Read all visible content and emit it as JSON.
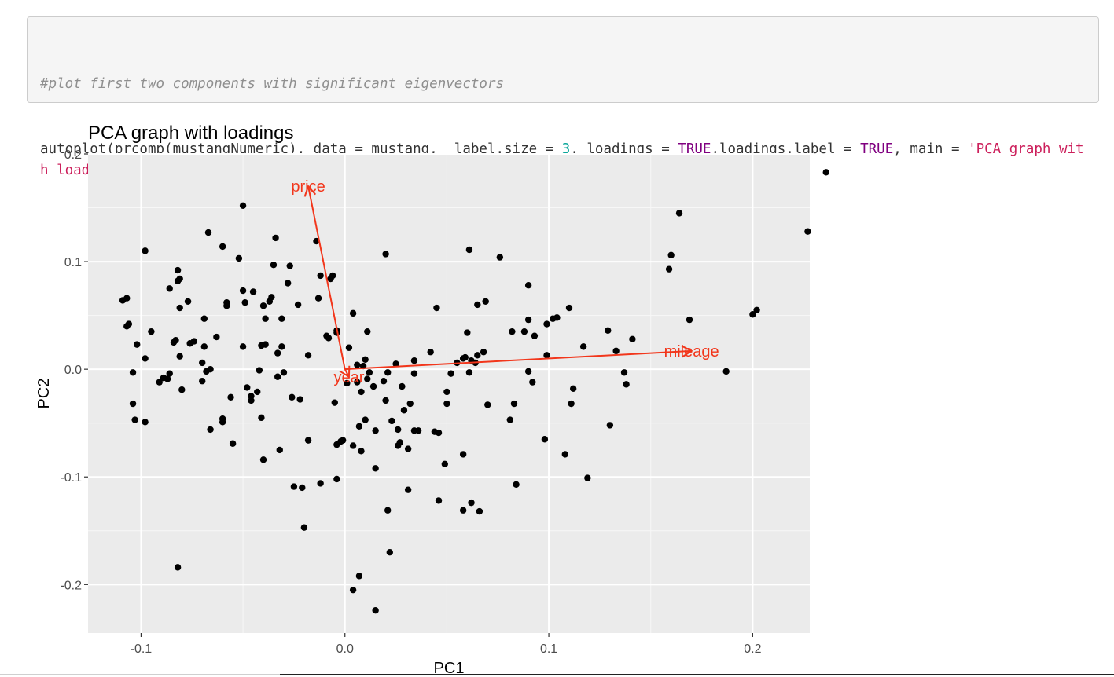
{
  "code_cell": {
    "comment": "#plot first two components with significant eigenvectors",
    "tokens": [
      {
        "text": "autoplot(prcomp(mustangNumeric), data = mustang,  label.size = ",
        "kind": "plain"
      },
      {
        "text": "3",
        "kind": "num"
      },
      {
        "text": ", loadings = ",
        "kind": "plain"
      },
      {
        "text": "TRUE",
        "kind": "kw"
      },
      {
        "text": ",loadings.label = ",
        "kind": "plain"
      },
      {
        "text": "TRUE",
        "kind": "kw"
      },
      {
        "text": ", main = ",
        "kind": "plain"
      },
      {
        "text": "'PCA graph with loadings'",
        "kind": "str"
      },
      {
        "text": ")",
        "kind": "plain"
      }
    ]
  },
  "chart_data": {
    "type": "scatter",
    "title": "PCA graph with loadings",
    "xlabel": "PC1",
    "ylabel": "PC2",
    "xlim": [
      -0.126,
      0.228
    ],
    "ylim": [
      -0.245,
      0.2
    ],
    "xticks": [
      -0.1,
      0.0,
      0.1,
      0.2
    ],
    "xtick_labels": [
      "-0.1",
      "0.0",
      "0.1",
      "0.2"
    ],
    "yticks": [
      -0.2,
      -0.1,
      0.0,
      0.1,
      0.2
    ],
    "ytick_labels": [
      "-0.2",
      "-0.1",
      "0.0",
      "0.1",
      "0.2"
    ],
    "grid": true,
    "panel_color": "#ebebeb",
    "point_color": "#000000",
    "loading_color": "#f2361b",
    "loadings": [
      {
        "label": "price",
        "x": -0.018,
        "y": 0.17
      },
      {
        "label": "mileage",
        "x": 0.17,
        "y": 0.017
      },
      {
        "label": "year",
        "x": 0.002,
        "y": -0.007
      }
    ],
    "points": [
      [
        -0.109,
        0.064
      ],
      [
        -0.107,
        0.066
      ],
      [
        -0.107,
        0.04
      ],
      [
        -0.106,
        0.042
      ],
      [
        -0.104,
        -0.003
      ],
      [
        -0.104,
        -0.032
      ],
      [
        -0.103,
        -0.047
      ],
      [
        -0.102,
        0.023
      ],
      [
        -0.098,
        0.11
      ],
      [
        -0.098,
        0.01
      ],
      [
        -0.098,
        -0.049
      ],
      [
        -0.095,
        0.035
      ],
      [
        -0.091,
        -0.012
      ],
      [
        -0.089,
        -0.008
      ],
      [
        -0.087,
        -0.009
      ],
      [
        -0.086,
        -0.004
      ],
      [
        -0.086,
        0.075
      ],
      [
        -0.084,
        0.025
      ],
      [
        -0.083,
        0.027
      ],
      [
        -0.082,
        0.092
      ],
      [
        -0.082,
        0.082
      ],
      [
        -0.081,
        0.084
      ],
      [
        -0.081,
        0.057
      ],
      [
        -0.081,
        0.012
      ],
      [
        -0.08,
        -0.019
      ],
      [
        -0.082,
        -0.184
      ],
      [
        -0.077,
        0.063
      ],
      [
        -0.076,
        0.024
      ],
      [
        -0.074,
        0.026
      ],
      [
        -0.07,
        0.006
      ],
      [
        -0.069,
        0.047
      ],
      [
        -0.069,
        0.021
      ],
      [
        -0.068,
        -0.002
      ],
      [
        -0.07,
        -0.011
      ],
      [
        -0.066,
        0.0
      ],
      [
        -0.067,
        0.127
      ],
      [
        -0.066,
        -0.056
      ],
      [
        -0.063,
        0.03
      ],
      [
        -0.06,
        0.114
      ],
      [
        -0.06,
        -0.049
      ],
      [
        -0.06,
        -0.046
      ],
      [
        -0.058,
        0.062
      ],
      [
        -0.058,
        0.059
      ],
      [
        -0.056,
        -0.026
      ],
      [
        -0.055,
        -0.069
      ],
      [
        -0.052,
        0.103
      ],
      [
        -0.05,
        0.152
      ],
      [
        -0.05,
        0.073
      ],
      [
        -0.05,
        0.021
      ],
      [
        -0.049,
        0.062
      ],
      [
        -0.048,
        -0.017
      ],
      [
        -0.046,
        -0.025
      ],
      [
        -0.046,
        -0.029
      ],
      [
        -0.045,
        0.072
      ],
      [
        -0.043,
        -0.021
      ],
      [
        -0.042,
        -0.001
      ],
      [
        -0.041,
        0.022
      ],
      [
        -0.04,
        0.059
      ],
      [
        -0.039,
        0.047
      ],
      [
        -0.039,
        0.023
      ],
      [
        -0.041,
        -0.045
      ],
      [
        -0.04,
        -0.084
      ],
      [
        -0.037,
        0.063
      ],
      [
        -0.036,
        0.067
      ],
      [
        -0.035,
        0.097
      ],
      [
        -0.034,
        0.122
      ],
      [
        -0.033,
        0.015
      ],
      [
        -0.032,
        -0.075
      ],
      [
        -0.033,
        -0.007
      ],
      [
        -0.031,
        0.047
      ],
      [
        -0.031,
        0.021
      ],
      [
        -0.03,
        -0.003
      ],
      [
        -0.028,
        0.08
      ],
      [
        -0.027,
        0.096
      ],
      [
        -0.026,
        -0.026
      ],
      [
        -0.025,
        -0.109
      ],
      [
        -0.023,
        0.06
      ],
      [
        -0.022,
        -0.028
      ],
      [
        -0.021,
        -0.11
      ],
      [
        -0.02,
        -0.147
      ],
      [
        -0.018,
        -0.066
      ],
      [
        -0.018,
        0.013
      ],
      [
        -0.014,
        0.119
      ],
      [
        -0.013,
        0.066
      ],
      [
        -0.012,
        -0.106
      ],
      [
        -0.012,
        0.087
      ],
      [
        -0.009,
        0.031
      ],
      [
        -0.008,
        0.029
      ],
      [
        -0.007,
        0.084
      ],
      [
        -0.006,
        0.087
      ],
      [
        -0.005,
        -0.031
      ],
      [
        -0.004,
        0.036
      ],
      [
        -0.004,
        0.034
      ],
      [
        -0.004,
        -0.102
      ],
      [
        -0.004,
        -0.07
      ],
      [
        -0.002,
        -0.067
      ],
      [
        -0.001,
        -0.066
      ],
      [
        0.001,
        -0.013
      ],
      [
        0.002,
        0.02
      ],
      [
        0.004,
        -0.071
      ],
      [
        0.004,
        -0.205
      ],
      [
        0.004,
        0.052
      ],
      [
        0.006,
        0.004
      ],
      [
        0.006,
        -0.012
      ],
      [
        0.007,
        -0.053
      ],
      [
        0.007,
        -0.192
      ],
      [
        0.008,
        -0.076
      ],
      [
        0.008,
        -0.021
      ],
      [
        0.009,
        0.003
      ],
      [
        0.01,
        0.009
      ],
      [
        0.01,
        -0.047
      ],
      [
        0.011,
        0.035
      ],
      [
        0.011,
        -0.009
      ],
      [
        0.012,
        -0.003
      ],
      [
        0.014,
        -0.016
      ],
      [
        0.015,
        -0.057
      ],
      [
        0.015,
        -0.092
      ],
      [
        0.015,
        -0.224
      ],
      [
        0.019,
        -0.011
      ],
      [
        0.02,
        -0.029
      ],
      [
        0.02,
        0.107
      ],
      [
        0.021,
        -0.003
      ],
      [
        0.021,
        -0.131
      ],
      [
        0.022,
        -0.17
      ],
      [
        0.023,
        -0.048
      ],
      [
        0.025,
        0.005
      ],
      [
        0.026,
        -0.071
      ],
      [
        0.026,
        -0.056
      ],
      [
        0.027,
        -0.068
      ],
      [
        0.028,
        -0.016
      ],
      [
        0.029,
        -0.038
      ],
      [
        0.031,
        -0.112
      ],
      [
        0.031,
        -0.074
      ],
      [
        0.032,
        -0.032
      ],
      [
        0.034,
        -0.057
      ],
      [
        0.034,
        -0.004
      ],
      [
        0.034,
        0.008
      ],
      [
        0.036,
        -0.057
      ],
      [
        0.042,
        0.016
      ],
      [
        0.044,
        -0.058
      ],
      [
        0.045,
        0.057
      ],
      [
        0.046,
        -0.122
      ],
      [
        0.046,
        -0.059
      ],
      [
        0.049,
        -0.088
      ],
      [
        0.05,
        -0.032
      ],
      [
        0.05,
        -0.021
      ],
      [
        0.052,
        -0.004
      ],
      [
        0.055,
        0.006
      ],
      [
        0.058,
        0.01
      ],
      [
        0.058,
        -0.131
      ],
      [
        0.058,
        -0.079
      ],
      [
        0.059,
        0.011
      ],
      [
        0.06,
        0.034
      ],
      [
        0.061,
        -0.003
      ],
      [
        0.061,
        0.111
      ],
      [
        0.062,
        0.008
      ],
      [
        0.062,
        -0.124
      ],
      [
        0.064,
        0.006
      ],
      [
        0.065,
        0.013
      ],
      [
        0.065,
        0.06
      ],
      [
        0.066,
        -0.132
      ],
      [
        0.068,
        0.016
      ],
      [
        0.069,
        0.063
      ],
      [
        0.07,
        -0.033
      ],
      [
        0.076,
        0.104
      ],
      [
        0.081,
        -0.047
      ],
      [
        0.082,
        0.035
      ],
      [
        0.083,
        -0.032
      ],
      [
        0.084,
        -0.107
      ],
      [
        0.088,
        0.035
      ],
      [
        0.09,
        0.046
      ],
      [
        0.09,
        0.078
      ],
      [
        0.09,
        -0.002
      ],
      [
        0.092,
        -0.012
      ],
      [
        0.093,
        0.031
      ],
      [
        0.098,
        -0.065
      ],
      [
        0.099,
        0.013
      ],
      [
        0.099,
        0.042
      ],
      [
        0.102,
        0.047
      ],
      [
        0.104,
        0.048
      ],
      [
        0.108,
        -0.079
      ],
      [
        0.11,
        0.057
      ],
      [
        0.111,
        -0.032
      ],
      [
        0.112,
        -0.018
      ],
      [
        0.117,
        0.021
      ],
      [
        0.119,
        -0.101
      ],
      [
        0.129,
        0.036
      ],
      [
        0.13,
        -0.052
      ],
      [
        0.133,
        0.017
      ],
      [
        0.137,
        -0.003
      ],
      [
        0.138,
        -0.014
      ],
      [
        0.141,
        0.028
      ],
      [
        0.159,
        0.093
      ],
      [
        0.16,
        0.106
      ],
      [
        0.164,
        0.145
      ],
      [
        0.169,
        0.046
      ],
      [
        0.187,
        -0.002
      ],
      [
        0.2,
        0.051
      ],
      [
        0.202,
        0.055
      ],
      [
        0.227,
        0.128
      ],
      [
        0.236,
        0.183
      ]
    ]
  }
}
